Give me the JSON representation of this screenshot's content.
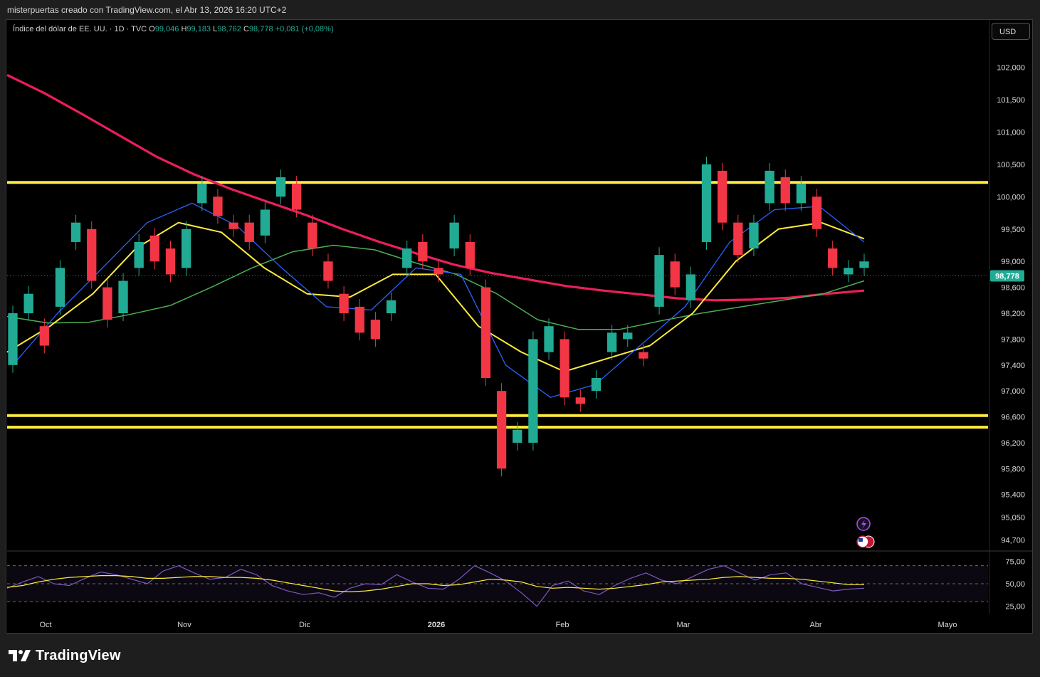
{
  "header": {
    "credit": "misterpuertas creado con TradingView.com, el Abr 13, 2026 16:20 UTC+2"
  },
  "legend": {
    "symbol": "Índice del dólar de EE. UU. · 1D · TVC",
    "open_label": "O",
    "open": "99,046",
    "high_label": "H",
    "high": "99,183",
    "low_label": "L",
    "low": "98,762",
    "close_label": "C",
    "close": "98,778",
    "change": "+0,081 (+0,08%)"
  },
  "currency": "USD",
  "last_price_label": "98,778",
  "brand": "TradingView",
  "colors": {
    "up": "#22ab94",
    "down": "#f23645",
    "level": "#ffeb3b",
    "ma_fast": "#2962ff",
    "ma_mid": "#ffeb3b",
    "ma_slow": "#4caf50",
    "ma_long": "#ec1e5c",
    "rsi": "#7e57c2",
    "rsi_ma": "#ffeb3b"
  },
  "chart_data": [
    {
      "type": "candlestick",
      "title": "",
      "y_axis_ticks": [
        "102,000",
        "101,500",
        "101,000",
        "100,500",
        "100,000",
        "99,500",
        "99,000",
        "98,600",
        "98,200",
        "97,800",
        "97,400",
        "97,000",
        "96,600",
        "96,200",
        "95,800",
        "95,400",
        "95,050",
        "94,700"
      ],
      "x_axis_ticks": [
        "Oct",
        "Nov",
        "Dic",
        "2026",
        "Feb",
        "Mar",
        "Abr",
        "Mayo"
      ],
      "ylim": [
        94.55,
        102.4
      ],
      "horizontal_levels": [
        100.22,
        96.62,
        96.44
      ],
      "moving_averages": [
        {
          "color": "ma_long",
          "values": [
            101.88,
            101.6,
            101.28,
            100.95,
            100.62,
            100.35,
            100.12,
            99.92,
            99.72,
            99.5,
            99.3,
            99.12,
            98.95,
            98.82,
            98.72,
            98.62,
            98.55,
            98.49,
            98.43,
            98.4,
            98.41,
            98.44,
            98.5,
            98.55
          ]
        },
        {
          "color": "ma_slow",
          "values": [
            98.15,
            98.05,
            98.06,
            98.18,
            98.32,
            98.6,
            98.9,
            99.15,
            99.25,
            99.18,
            98.98,
            98.8,
            98.5,
            98.1,
            97.95,
            97.95,
            98.08,
            98.2,
            98.3,
            98.4,
            98.5,
            98.7
          ]
        },
        {
          "color": "ma_mid",
          "values": [
            97.6,
            98.0,
            98.5,
            99.2,
            99.6,
            99.45,
            98.9,
            98.5,
            98.45,
            98.8,
            98.8,
            98.0,
            97.6,
            97.3,
            97.5,
            97.7,
            98.2,
            99.0,
            99.5,
            99.6,
            99.35
          ]
        },
        {
          "color": "ma_fast",
          "values": [
            97.4,
            98.2,
            98.9,
            99.6,
            99.9,
            99.55,
            98.9,
            98.3,
            98.25,
            98.9,
            98.8,
            97.4,
            96.9,
            97.1,
            97.7,
            98.3,
            99.3,
            99.8,
            99.85,
            99.3
          ]
        }
      ],
      "candles": [
        [
          97.4,
          98.2
        ],
        [
          98.2,
          98.5
        ],
        [
          98.0,
          97.7
        ],
        [
          98.3,
          98.9
        ],
        [
          99.3,
          99.6
        ],
        [
          99.5,
          98.7
        ],
        [
          98.6,
          98.1
        ],
        [
          98.2,
          98.7
        ],
        [
          98.9,
          99.3
        ],
        [
          99.4,
          99.0
        ],
        [
          99.2,
          98.8
        ],
        [
          98.9,
          99.5
        ],
        [
          99.9,
          100.2
        ],
        [
          100.0,
          99.7
        ],
        [
          99.6,
          99.5
        ],
        [
          99.6,
          99.3
        ],
        [
          99.4,
          99.8
        ],
        [
          100.0,
          100.3
        ],
        [
          100.2,
          99.8
        ],
        [
          99.6,
          99.2
        ],
        [
          99.0,
          98.7
        ],
        [
          98.5,
          98.2
        ],
        [
          98.3,
          97.9
        ],
        [
          98.1,
          97.8
        ],
        [
          98.2,
          98.4
        ],
        [
          98.9,
          99.2
        ],
        [
          99.3,
          99.0
        ],
        [
          98.9,
          98.8
        ],
        [
          99.2,
          99.6
        ],
        [
          99.3,
          98.9
        ],
        [
          98.6,
          97.2
        ],
        [
          97.0,
          95.8
        ],
        [
          96.2,
          96.4
        ],
        [
          96.2,
          97.8
        ],
        [
          97.6,
          98.0
        ],
        [
          97.8,
          96.9
        ],
        [
          96.9,
          96.8
        ],
        [
          97.0,
          97.2
        ],
        [
          97.6,
          97.9
        ],
        [
          97.8,
          97.9
        ],
        [
          97.6,
          97.5
        ],
        [
          98.3,
          99.1
        ],
        [
          99.0,
          98.6
        ],
        [
          98.4,
          98.8
        ],
        [
          99.3,
          100.5
        ],
        [
          100.4,
          99.6
        ],
        [
          99.6,
          99.1
        ],
        [
          99.2,
          99.6
        ],
        [
          99.9,
          100.4
        ],
        [
          100.3,
          99.9
        ],
        [
          99.9,
          100.2
        ],
        [
          100.0,
          99.5
        ],
        [
          99.2,
          98.9
        ],
        [
          98.8,
          98.9
        ],
        [
          98.9,
          99.0
        ]
      ],
      "last_value": 98.778
    },
    {
      "type": "line",
      "title": "RSI",
      "y_axis_ticks": [
        "75,00",
        "50,00",
        "25,00"
      ],
      "ylim": [
        20,
        80
      ],
      "series": [
        {
          "color": "rsi",
          "values": [
            45,
            52,
            58,
            50,
            48,
            56,
            63,
            60,
            55,
            50,
            64,
            70,
            62,
            55,
            57,
            66,
            60,
            48,
            42,
            38,
            40,
            35,
            45,
            50,
            49,
            60,
            52,
            45,
            44,
            55,
            70,
            62,
            53,
            40,
            25,
            48,
            53,
            42,
            38,
            48,
            56,
            62,
            54,
            50,
            58,
            66,
            70,
            62,
            54,
            60,
            62,
            50,
            46,
            42,
            44,
            45
          ]
        },
        {
          "color": "rsi_ma",
          "values": [
            46,
            48,
            52,
            55,
            57,
            58,
            59,
            59,
            58,
            56,
            56,
            57,
            58,
            58,
            57,
            57,
            56,
            54,
            51,
            48,
            45,
            42,
            41,
            42,
            44,
            47,
            50,
            50,
            48,
            49,
            52,
            55,
            54,
            52,
            47,
            45,
            46,
            45,
            44,
            45,
            47,
            49,
            52,
            53,
            54,
            55,
            57,
            58,
            57,
            56,
            56,
            55,
            53,
            51,
            49,
            49
          ]
        }
      ],
      "reference_lines": [
        70,
        50,
        30
      ]
    }
  ]
}
